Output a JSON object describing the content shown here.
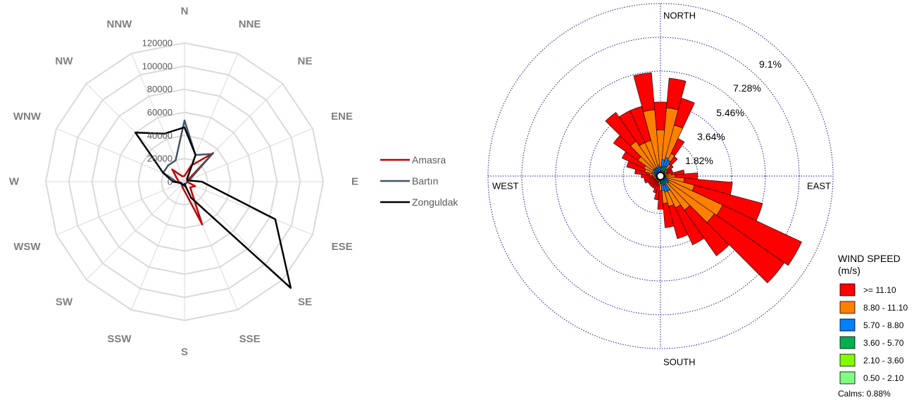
{
  "chart_data": [
    {
      "type": "radar",
      "categories": [
        "N",
        "NNE",
        "NE",
        "ENE",
        "E",
        "ESE",
        "SE",
        "SSE",
        "S",
        "SSW",
        "SW",
        "WSW",
        "W",
        "WNW",
        "NW",
        "NNW"
      ],
      "rlim": [
        0,
        120000
      ],
      "rticks": [
        "0",
        "20000",
        "40000",
        "60000",
        "80000",
        "100000",
        "120000"
      ],
      "grid": true,
      "legend_position": "right",
      "series": [
        {
          "name": "Amasra",
          "color": "#c00000",
          "values": [
            5000,
            15000,
            35000,
            3000,
            2000,
            10000,
            7000,
            40000,
            8000,
            5000,
            3000,
            3000,
            5000,
            7000,
            15000,
            5000
          ]
        },
        {
          "name": "Bartın",
          "color": "#44546a",
          "values": [
            53000,
            25000,
            34000,
            5000,
            2000,
            2000,
            2000,
            2000,
            4000,
            3000,
            3000,
            4000,
            7000,
            20000,
            20000,
            20000
          ]
        },
        {
          "name": "Zonguldak",
          "color": "#000000",
          "values": [
            47000,
            25000,
            3000,
            3000,
            15000,
            85000,
            130000,
            15000,
            2000,
            3000,
            3000,
            3000,
            10000,
            20000,
            60000,
            45000
          ]
        }
      ]
    },
    {
      "type": "wind-rose",
      "directions_count": 36,
      "bin_unit": "%",
      "compass_labels": [
        "NORTH",
        "EAST",
        "SOUTH",
        "WEST"
      ],
      "ring_labels": [
        "1.82%",
        "3.64%",
        "5.46%",
        "7.28%",
        "9.1%"
      ],
      "ring_values": [
        1.82,
        3.64,
        5.46,
        7.28,
        9.1
      ],
      "legend_title_line1": "WIND SPEED",
      "legend_title_line2": "(m/s)",
      "bins": [
        {
          "label": ">= 11.10",
          "color": "#ff0000"
        },
        {
          "label": "8.80 - 11.10",
          "color": "#ff8000"
        },
        {
          "label": "5.70 - 8.80",
          "color": "#0080ff"
        },
        {
          "label": "3.60 - 5.70",
          "color": "#00b050"
        },
        {
          "label": "2.10 - 3.60",
          "color": "#80ff00"
        },
        {
          "label": "0.50 - 2.10",
          "color": "#80ff80"
        }
      ],
      "calms": "Calms: 0.88%",
      "series": [
        {
          "direction": 0,
          "values": [
            1.5,
            2.0,
            0.3,
            0,
            0,
            0
          ]
        },
        {
          "direction": 10,
          "values": [
            1.6,
            2.8,
            0.4,
            0.3,
            0,
            0
          ]
        },
        {
          "direction": 20,
          "values": [
            1.5,
            1.8,
            0.5,
            0.35,
            0,
            0
          ]
        },
        {
          "direction": 30,
          "values": [
            0.9,
            0.4,
            0.35,
            0.4,
            0,
            0
          ]
        },
        {
          "direction": 40,
          "values": [
            0.5,
            0.3,
            0.15,
            0.15,
            0,
            0
          ]
        },
        {
          "direction": 50,
          "values": [
            0.35,
            0.2,
            0.1,
            0,
            0,
            0
          ]
        },
        {
          "direction": 60,
          "values": [
            0.3,
            0.15,
            0.05,
            0,
            0,
            0
          ]
        },
        {
          "direction": 70,
          "values": [
            0.3,
            0.15,
            0.05,
            0,
            0,
            0
          ]
        },
        {
          "direction": 80,
          "values": [
            0.7,
            0.35,
            0.05,
            0,
            0,
            0
          ]
        },
        {
          "direction": 90,
          "values": [
            1.2,
            0.5,
            0.1,
            0,
            0,
            0
          ]
        },
        {
          "direction": 100,
          "values": [
            2.6,
            1.0,
            0.1,
            0,
            0,
            0
          ]
        },
        {
          "direction": 110,
          "values": [
            3.8,
            1.5,
            0.2,
            0,
            0,
            0
          ]
        },
        {
          "direction": 120,
          "values": [
            4.7,
            3.2,
            0.3,
            0,
            0,
            0
          ]
        },
        {
          "direction": 130,
          "values": [
            4.6,
            3.0,
            0.3,
            0.05,
            0,
            0
          ]
        },
        {
          "direction": 140,
          "values": [
            3.0,
            1.8,
            0.2,
            0.05,
            0,
            0
          ]
        },
        {
          "direction": 150,
          "values": [
            2.2,
            1.0,
            0.4,
            0.3,
            0,
            0
          ]
        },
        {
          "direction": 160,
          "values": [
            1.8,
            0.8,
            0.4,
            0.3,
            0,
            0
          ]
        },
        {
          "direction": 170,
          "values": [
            1.3,
            0.7,
            0.4,
            0.2,
            0,
            0
          ]
        },
        {
          "direction": 180,
          "values": [
            1.0,
            0.4,
            0.2,
            0,
            0,
            0
          ]
        },
        {
          "direction": 190,
          "values": [
            0.8,
            0.2,
            0.1,
            0,
            0,
            0
          ]
        },
        {
          "direction": 200,
          "values": [
            0.6,
            0.1,
            0.05,
            0,
            0,
            0
          ]
        },
        {
          "direction": 210,
          "values": [
            0.4,
            0.1,
            0.05,
            0,
            0,
            0
          ]
        },
        {
          "direction": 220,
          "values": [
            0.4,
            0.1,
            0.05,
            0,
            0,
            0
          ]
        },
        {
          "direction": 230,
          "values": [
            0.4,
            0.1,
            0.05,
            0,
            0,
            0
          ]
        },
        {
          "direction": 240,
          "values": [
            0.4,
            0.1,
            0.05,
            0,
            0,
            0
          ]
        },
        {
          "direction": 250,
          "values": [
            0.5,
            0.15,
            0.05,
            0,
            0,
            0
          ]
        },
        {
          "direction": 260,
          "values": [
            0.5,
            0.15,
            0.05,
            0,
            0,
            0
          ]
        },
        {
          "direction": 270,
          "values": [
            0.6,
            0.2,
            0.05,
            0,
            0,
            0
          ]
        },
        {
          "direction": 280,
          "values": [
            0.8,
            0.3,
            0.1,
            0,
            0,
            0
          ]
        },
        {
          "direction": 290,
          "values": [
            1.0,
            0.4,
            0.3,
            0,
            0,
            0
          ]
        },
        {
          "direction": 300,
          "values": [
            1.3,
            0.6,
            0.2,
            0,
            0,
            0
          ]
        },
        {
          "direction": 310,
          "values": [
            1.6,
            1.0,
            0.3,
            0,
            0,
            0
          ]
        },
        {
          "direction": 320,
          "values": [
            1.9,
            1.8,
            0.3,
            0,
            0,
            0
          ]
        },
        {
          "direction": 330,
          "values": [
            1.9,
            1.5,
            0.3,
            0,
            0,
            0
          ]
        },
        {
          "direction": 340,
          "values": [
            1.9,
            1.5,
            0.3,
            0,
            0,
            0
          ]
        },
        {
          "direction": 350,
          "values": [
            2.0,
            3.0,
            0.4,
            0,
            0,
            0
          ]
        }
      ]
    }
  ]
}
